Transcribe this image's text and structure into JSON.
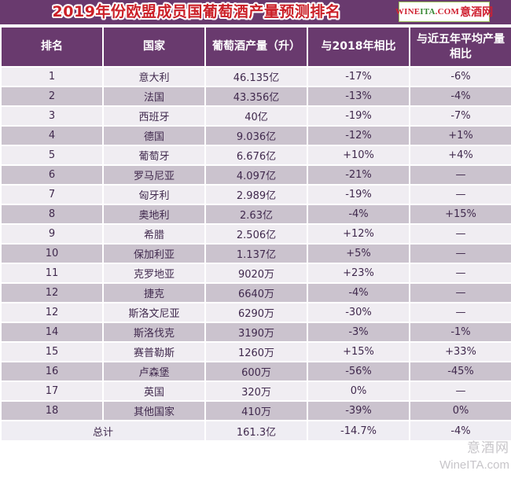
{
  "banner": {
    "title": "2019年份欧盟成员国葡萄酒产量预测排名",
    "logo": {
      "wine": "WINE",
      "ita": "ITA",
      "com": ".COM",
      "cn": "意酒网"
    }
  },
  "table": {
    "headers": [
      "排名",
      "国家",
      "葡萄酒产量（升）",
      "与2018年相比",
      "与近五年平均产量相比"
    ],
    "rows": [
      [
        "1",
        "意大利",
        "46.135亿",
        "-17%",
        "-6%"
      ],
      [
        "2",
        "法国",
        "43.356亿",
        "-13%",
        "-4%"
      ],
      [
        "3",
        "西班牙",
        "40亿",
        "-19%",
        "-7%"
      ],
      [
        "4",
        "德国",
        "9.036亿",
        "-12%",
        "+1%"
      ],
      [
        "5",
        "葡萄牙",
        "6.676亿",
        "+10%",
        "+4%"
      ],
      [
        "6",
        "罗马尼亚",
        "4.097亿",
        "-21%",
        "—"
      ],
      [
        "7",
        "匈牙利",
        "2.989亿",
        "-19%",
        "—"
      ],
      [
        "8",
        "奥地利",
        "2.63亿",
        "-4%",
        "+15%"
      ],
      [
        "9",
        "希腊",
        "2.506亿",
        "+12%",
        "—"
      ],
      [
        "10",
        "保加利亚",
        "1.137亿",
        "+5%",
        "—"
      ],
      [
        "11",
        "克罗地亚",
        "9020万",
        "+23%",
        "—"
      ],
      [
        "12",
        "捷克",
        "6640万",
        "-4%",
        "—"
      ],
      [
        "12",
        "斯洛文尼亚",
        "6290万",
        "-30%",
        "—"
      ],
      [
        "14",
        "斯洛伐克",
        "3190万",
        "-3%",
        "-1%"
      ],
      [
        "15",
        "赛普勒斯",
        "1260万",
        "+15%",
        "+33%"
      ],
      [
        "16",
        "卢森堡",
        "600万",
        "-56%",
        "-45%"
      ],
      [
        "17",
        "英国",
        "320万",
        "0%",
        "—"
      ],
      [
        "18",
        "其他国家",
        "410万",
        "-39%",
        "0%"
      ]
    ],
    "total": {
      "label": "总计",
      "production": "161.3亿",
      "vs2018": "-14.7%",
      "vs5yr": "-4%"
    }
  },
  "watermark": {
    "line1": "意酒网",
    "line2": "WineITA.com"
  },
  "colors": {
    "header_purple": "#693a6e",
    "title_red": "#cb1f27",
    "logo_red": "#cf2030",
    "logo_green": "#33862f",
    "row_light": "#f0edf2",
    "row_dark": "#cbc3ce",
    "row_text": "#40294d",
    "watermark_gray": "#c7c5c9"
  }
}
